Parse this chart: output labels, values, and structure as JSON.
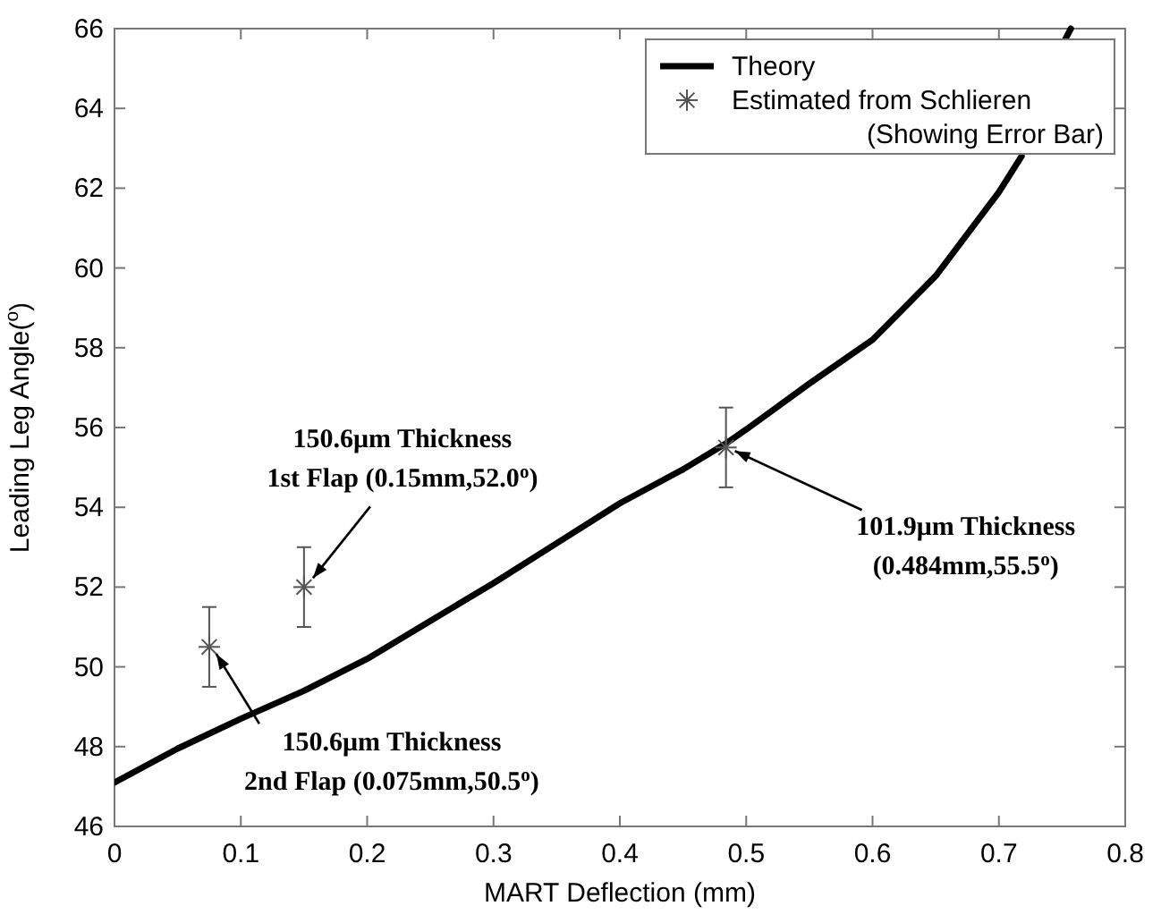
{
  "chart_data": {
    "type": "line",
    "xlabel": "MART Deflection (mm)",
    "ylabel": "Leading Leg Angle($^{o}$)",
    "xlim": [
      0,
      0.8
    ],
    "xticks": [
      0,
      0.1,
      0.2,
      0.3,
      0.4,
      0.5,
      0.6,
      0.7,
      0.8
    ],
    "ylim": [
      46,
      66
    ],
    "yticks": [
      46,
      48,
      50,
      52,
      54,
      56,
      58,
      60,
      62,
      64,
      66
    ],
    "grid": false,
    "legend": "top right",
    "series": [
      {
        "name": "Theory",
        "color": "#000000",
        "line_style": "solid",
        "marker": "none",
        "x": [
          0,
          0.05,
          0.1,
          0.15,
          0.2,
          0.25,
          0.3,
          0.35,
          0.4,
          0.45,
          0.484,
          0.5,
          0.55,
          0.6,
          0.65,
          0.7,
          0.718,
          0.74,
          0.752,
          0.757
        ],
        "values": [
          47.1,
          47.95,
          48.7,
          49.4,
          50.2,
          51.15,
          52.1,
          53.1,
          54.1,
          54.95,
          55.6,
          55.95,
          57.1,
          58.2,
          59.8,
          61.9,
          62.8,
          null,
          65.7,
          66
        ]
      },
      {
        "name": "Estimated from Schlieren\n(Showing Error Bar)",
        "type": "scatter",
        "color": "#555555",
        "marker": "cross",
        "x": [
          0.075,
          0.15,
          0.484
        ],
        "values": [
          50.5,
          52.0,
          55.5
        ],
        "errors": [
          1,
          1,
          1
        ]
      }
    ],
    "annotations": [
      {
        "text": "150.6μm Thickness\n1st Flap (0.15mm,52.0$^{o}$)",
        "x": 0.15,
        "y": 52.0
      },
      {
        "text": "150.6μm Thickness\n2nd Flap (0.075mm,50.5$^{o}$)",
        "x": 0.075,
        "y": 50.5
      },
      {
        "text": "101.9μm Thickness\n(0.484mm,55.5$^{o}$)",
        "x": 0.484,
        "y": 55.5
      }
    ]
  }
}
